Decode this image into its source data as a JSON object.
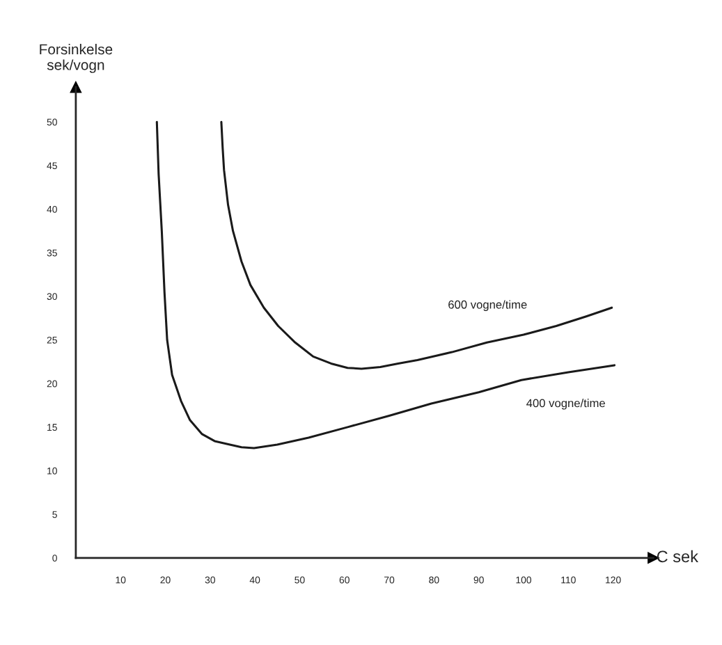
{
  "chart_data": {
    "type": "line",
    "xlabel": "C sek",
    "ylabel": "Forsinkelse\nsek/vogn",
    "xlim": [
      0,
      129
    ],
    "ylim": [
      0,
      54
    ],
    "xticks": [
      10,
      20,
      30,
      40,
      50,
      60,
      70,
      80,
      90,
      100,
      110,
      120
    ],
    "yticks": [
      0,
      5,
      10,
      15,
      20,
      25,
      30,
      35,
      40,
      45,
      50
    ],
    "grid": false,
    "legend": false,
    "marker": "none",
    "line_style": "solid",
    "series": [
      {
        "name": "600 vogne/time",
        "color": "#1a1a1a",
        "x": [
          32.5,
          32.8,
          33.1,
          34.0,
          35.1,
          37.0,
          39.0,
          42.0,
          45.2,
          49.0,
          53.0,
          57.0,
          60.7,
          63.8,
          68.0,
          72.0,
          76.3,
          84.0,
          91.8,
          100.0,
          107.3,
          114.0,
          119.7
        ],
        "values": [
          50,
          47,
          44.5,
          40.5,
          37.5,
          34.0,
          31.3,
          28.7,
          26.6,
          24.7,
          23.1,
          22.3,
          21.8,
          21.7,
          21.9,
          22.3,
          22.7,
          23.6,
          24.7,
          25.6,
          26.6,
          27.7,
          28.7
        ]
      },
      {
        "name": "400 vogne/time",
        "color": "#1a1a1a",
        "x": [
          18.1,
          18.5,
          19.2,
          19.8,
          20.4,
          21.5,
          23.5,
          25.5,
          28.2,
          31.0,
          34.4,
          37.0,
          39.8,
          45.0,
          52.0,
          60.7,
          70.0,
          79.4,
          90.0,
          99.5,
          110.0,
          120.3
        ],
        "values": [
          50,
          44,
          37.5,
          30.5,
          25.0,
          21.0,
          18.0,
          15.8,
          14.2,
          13.4,
          13.0,
          12.7,
          12.6,
          13.0,
          13.8,
          15.0,
          16.3,
          17.7,
          19.0,
          20.4,
          21.3,
          22.1
        ]
      }
    ]
  }
}
